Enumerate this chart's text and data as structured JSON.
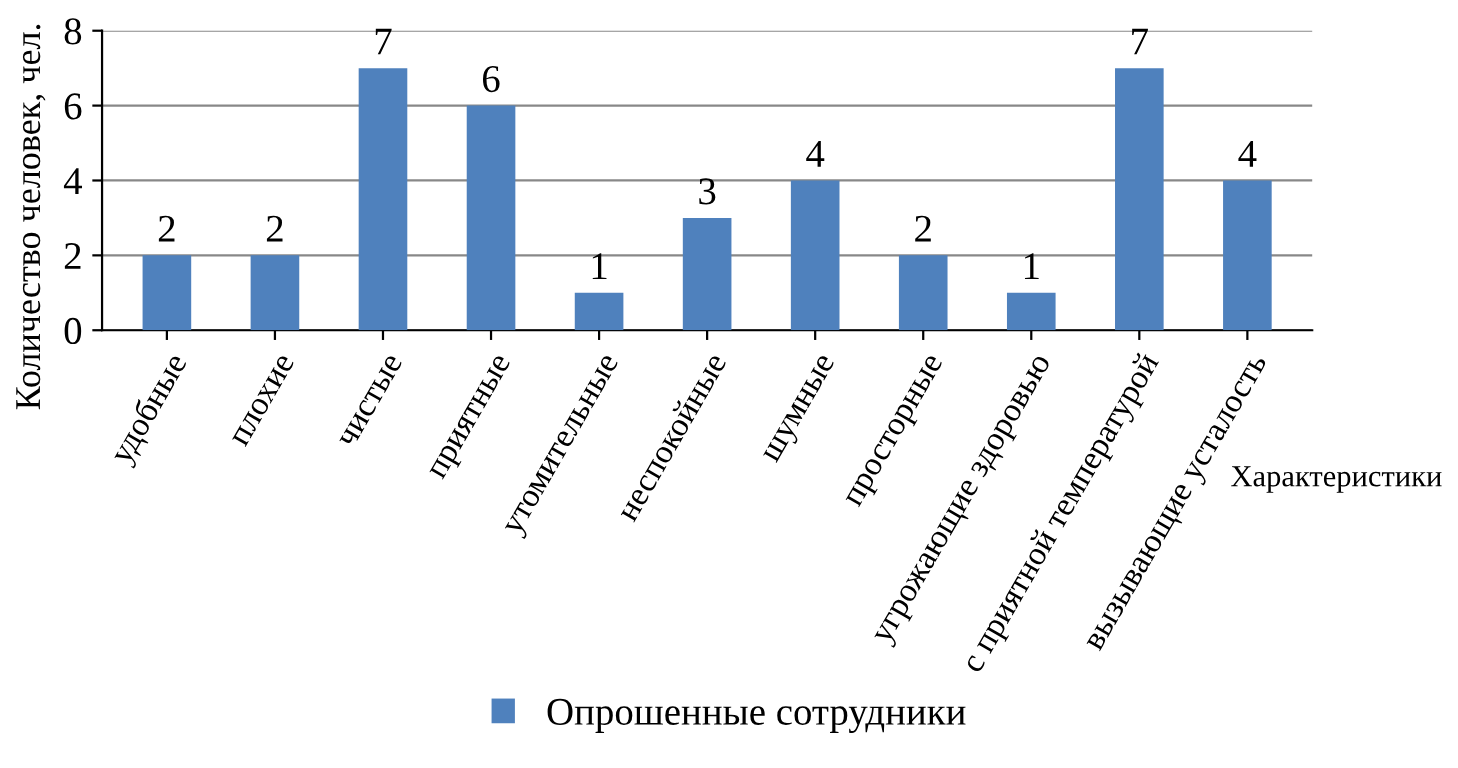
{
  "chart_data": {
    "type": "bar",
    "ylabel": "Количество человек, чел.",
    "xlabel": "Характеристики",
    "categories": [
      "удобные",
      "плохие",
      "чистые",
      "приятные",
      "утомительные",
      "неспокойные",
      "шумные",
      "просторные",
      "угрожающие здоровью",
      "с приятной температурой",
      "вызывающие усталость"
    ],
    "series": [
      {
        "name": "Опрошенные сотрудники",
        "color": "#4f81bd",
        "values": [
          2,
          2,
          7,
          6,
          1,
          3,
          4,
          2,
          1,
          7,
          4
        ]
      }
    ],
    "ylim": [
      0,
      8
    ],
    "yticks": [
      0,
      2,
      4,
      6,
      8
    ],
    "grid": "y",
    "legend": "bottom",
    "data_labels": true
  }
}
